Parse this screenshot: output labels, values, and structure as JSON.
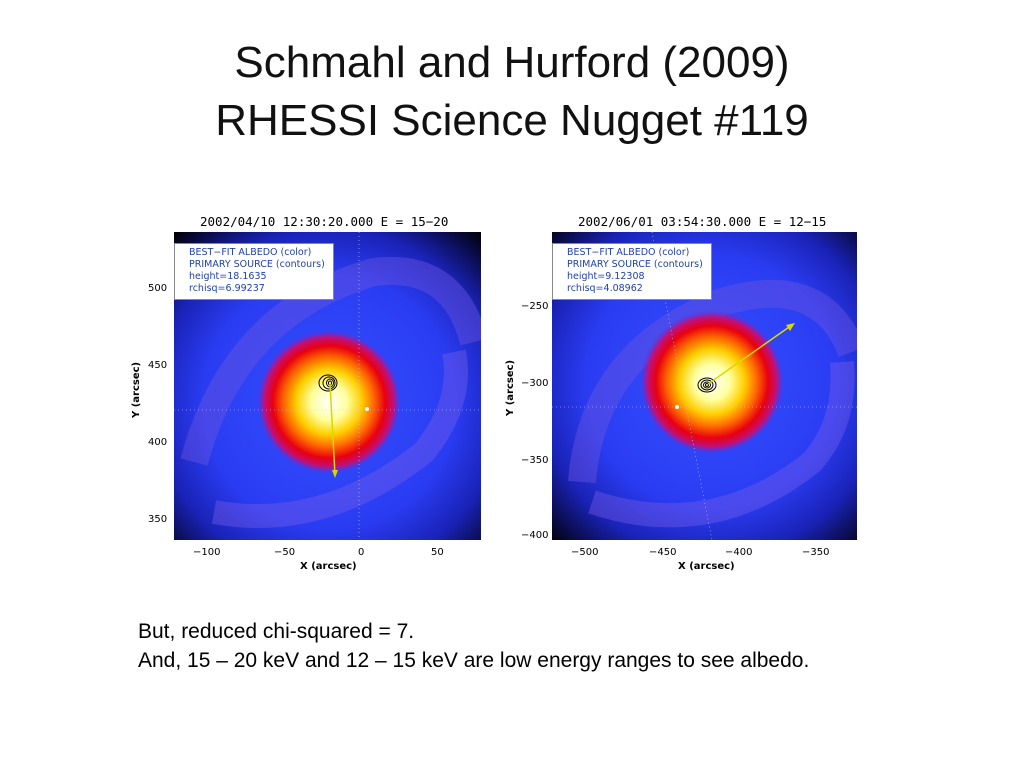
{
  "slide": {
    "title_line1": "Schmahl and Hurford (2009)",
    "title_line2": "RHESSI Science Nugget #119",
    "caption_line1": "But, reduced chi-squared = 7.",
    "caption_line2": "And, 15 – 20 keV and 12 – 15 keV are low energy ranges to see albedo."
  },
  "figures": [
    {
      "plot_title": "2002/04/10 12:30:20.000 E = 15−20",
      "legend": [
        "BEST−FIT ALBEDO (color)",
        "PRIMARY SOURCE (contours)",
        "height=18.1635",
        "rchisq=6.99237"
      ],
      "xlabel": "X (arcsec)",
      "ylabel": "Y (arcsec)",
      "xticks": [
        "−100",
        "−50",
        "0",
        "50"
      ],
      "yticks": [
        "500",
        "450",
        "400",
        "350"
      ]
    },
    {
      "plot_title": "2002/06/01 03:54:30.000 E = 12−15",
      "legend": [
        "BEST−FIT ALBEDO (color)",
        "PRIMARY SOURCE (contours)",
        "height=9.12308",
        "rchisq=4.08962"
      ],
      "xlabel": "X (arcsec)",
      "ylabel": "Y (arcsec)",
      "xticks": [
        "−500",
        "−450",
        "−400",
        "−350"
      ],
      "yticks": [
        "−250",
        "−300",
        "−350",
        "−400"
      ]
    }
  ]
}
